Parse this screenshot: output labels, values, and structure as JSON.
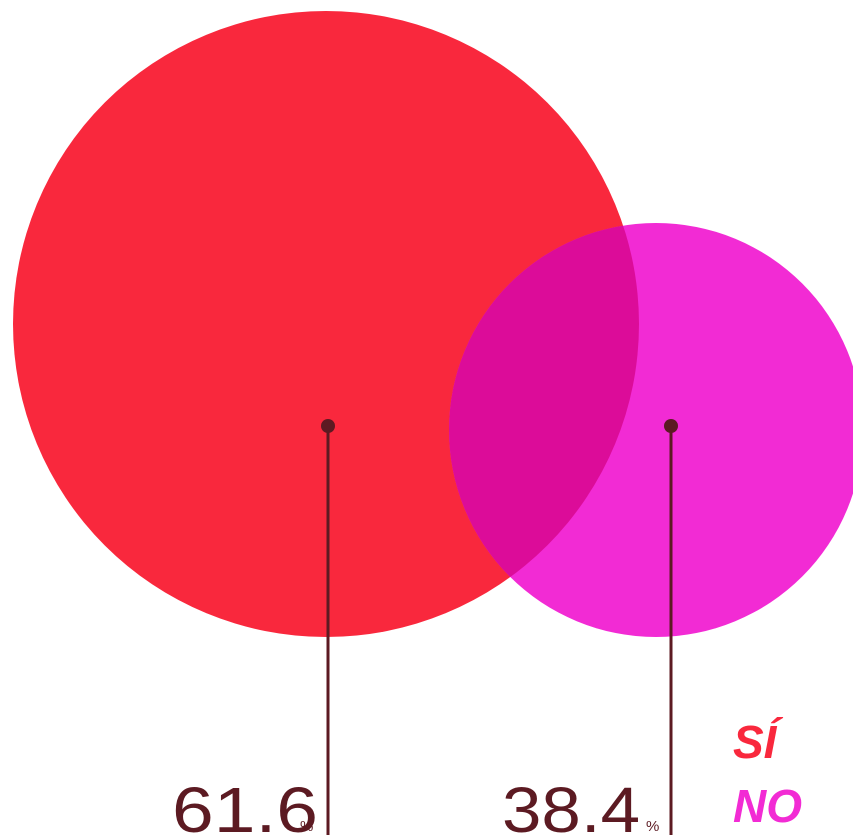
{
  "chart_data": {
    "type": "bubble",
    "unit": "%",
    "series": [
      {
        "name": "SÍ",
        "value": 61.6,
        "value_label": "61.6",
        "color": "#f9283d"
      },
      {
        "name": "NO",
        "value": 38.4,
        "value_label": "38.4",
        "color": "#f22bd4"
      }
    ],
    "overlap_color": "#dc0c99",
    "leader_color": "#5c1a22",
    "legend_position": "bottom-right"
  }
}
